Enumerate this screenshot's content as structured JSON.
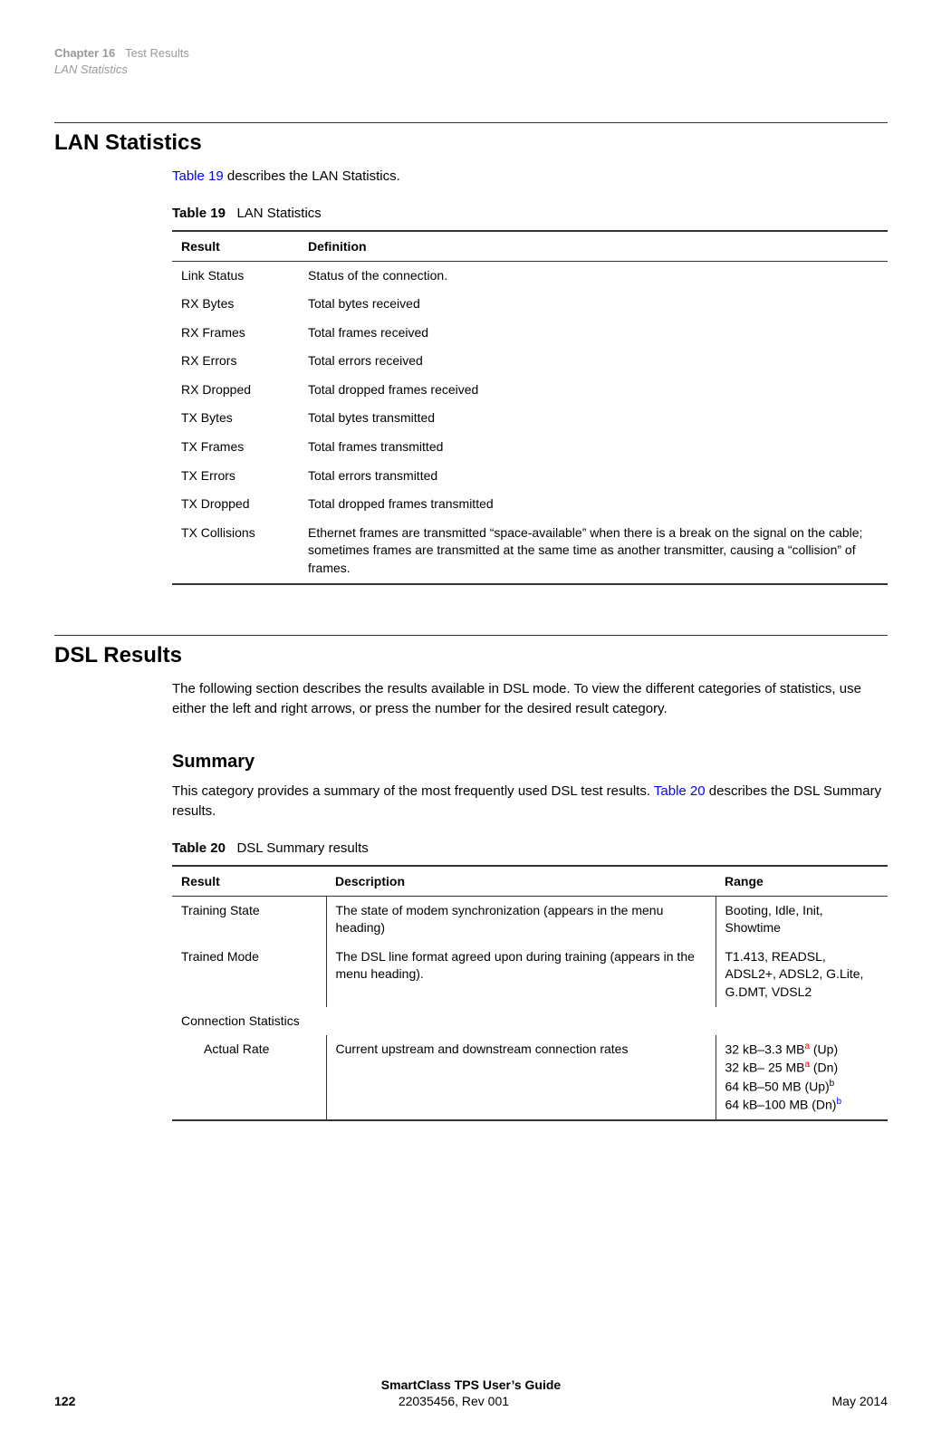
{
  "header": {
    "chapter_prefix": "Chapter 16",
    "chapter_title": "Test Results",
    "subtitle": "LAN Statistics"
  },
  "lan_section": {
    "title": "LAN Statistics",
    "intro_link": "Table 19",
    "intro_rest": " describes the LAN Statistics.",
    "table_caption_bold": "Table 19",
    "table_caption_rest": "LAN Statistics",
    "headers": {
      "result": "Result",
      "definition": "Definition"
    },
    "rows": [
      {
        "result": "Link Status",
        "definition": "Status of the connection."
      },
      {
        "result": "RX Bytes",
        "definition": "Total bytes received"
      },
      {
        "result": "RX Frames",
        "definition": "Total frames received"
      },
      {
        "result": "RX Errors",
        "definition": "Total errors received"
      },
      {
        "result": "RX Dropped",
        "definition": "Total dropped frames received"
      },
      {
        "result": "TX Bytes",
        "definition": "Total bytes transmitted"
      },
      {
        "result": "TX Frames",
        "definition": "Total frames transmitted"
      },
      {
        "result": "TX Errors",
        "definition": "Total errors transmitted"
      },
      {
        "result": "TX Dropped",
        "definition": "Total dropped frames transmitted"
      },
      {
        "result": "TX Collisions",
        "definition": "Ethernet frames are transmitted “space-available” when there is a break on the signal on the cable; sometimes frames are transmitted at the same time as another transmitter, causing a “collision” of frames."
      }
    ]
  },
  "dsl_section": {
    "title": "DSL Results",
    "intro": "The following section describes the results available in DSL mode. To view the different categories of statistics, use either the left and right arrows, or press the number for the desired result category.",
    "summary_title": "Summary",
    "summary_intro_pre": "This category provides a summary of the most frequently used DSL test results. ",
    "summary_intro_link": "Table 20",
    "summary_intro_post": " describes the DSL Summary results.",
    "table_caption_bold": "Table 20",
    "table_caption_rest": "DSL Summary results",
    "headers": {
      "result": "Result",
      "description": "Description",
      "range": "Range"
    },
    "rows": {
      "training_state": {
        "result": "Training State",
        "description": "The state of modem synchronization (appears in the menu heading)",
        "range": "Booting, Idle, Init, Showtime"
      },
      "trained_mode": {
        "result": "Trained Mode",
        "description": "The DSL line format agreed upon during training (appears in the menu heading).",
        "range": "T1.413, READSL, ADSL2+, ADSL2, G.Lite, G.DMT, VDSL2"
      },
      "connection_stats": {
        "result": "Connection Statistics"
      },
      "actual_rate": {
        "result": "Actual Rate",
        "description": "Current upstream and downstream connection rates",
        "range_line1_pre": "32 kB–3.3 MB",
        "range_line1_sup": "a",
        "range_line1_post": " (Up)",
        "range_line2_pre": "32 kB– 25 MB",
        "range_line2_sup": "a",
        "range_line2_post": " (Dn)",
        "range_line3_pre": "64 kB–50 MB (Up)",
        "range_line3_sup": "b",
        "range_line4_pre": "64 kB–100 MB (Dn)",
        "range_line4_sup": "b"
      }
    }
  },
  "footer": {
    "title": "SmartClass TPS User’s Guide",
    "page": "122",
    "docid": "22035456, Rev 001",
    "date": "May 2014"
  }
}
